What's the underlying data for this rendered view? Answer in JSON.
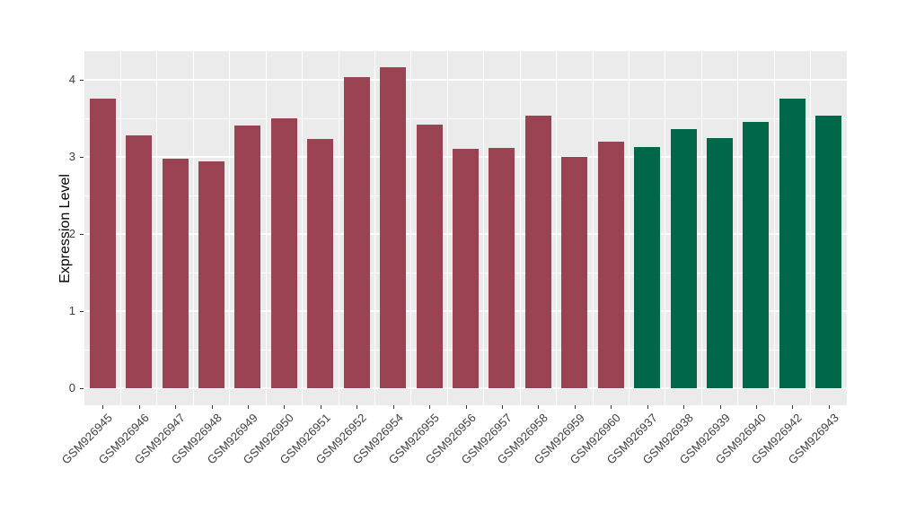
{
  "figure": {
    "background": "#ffffff",
    "panel_background": "#EBEBEB",
    "grid_color": "#FFFFFF",
    "tick_mark_color": "#333333",
    "axis_text_color": "#404040",
    "axis_title_color": "#000000"
  },
  "chart_data": {
    "type": "bar",
    "title": "",
    "xlabel": "",
    "ylabel": "Expression Level",
    "ylim": [
      0,
      4.37
    ],
    "yticks": [
      0,
      1,
      2,
      3,
      4
    ],
    "grid": "on",
    "legend": "none",
    "group_colors": {
      "group1": "#9A4352",
      "group2": "#006849"
    },
    "categories": [
      "GSM926945",
      "GSM926946",
      "GSM926947",
      "GSM926948",
      "GSM926949",
      "GSM926950",
      "GSM926951",
      "GSM926952",
      "GSM926954",
      "GSM926955",
      "GSM926956",
      "GSM926957",
      "GSM926958",
      "GSM926959",
      "GSM926960",
      "GSM926937",
      "GSM926938",
      "GSM926939",
      "GSM926940",
      "GSM926942",
      "GSM926943"
    ],
    "values": [
      3.76,
      3.28,
      2.98,
      2.94,
      3.41,
      3.5,
      3.23,
      4.04,
      4.16,
      3.42,
      3.1,
      3.12,
      3.53,
      3.0,
      3.2,
      3.13,
      3.36,
      3.24,
      3.45,
      3.75,
      3.53
    ],
    "bar_groups": [
      "group1",
      "group1",
      "group1",
      "group1",
      "group1",
      "group1",
      "group1",
      "group1",
      "group1",
      "group1",
      "group1",
      "group1",
      "group1",
      "group1",
      "group1",
      "group2",
      "group2",
      "group2",
      "group2",
      "group2",
      "group2"
    ]
  }
}
